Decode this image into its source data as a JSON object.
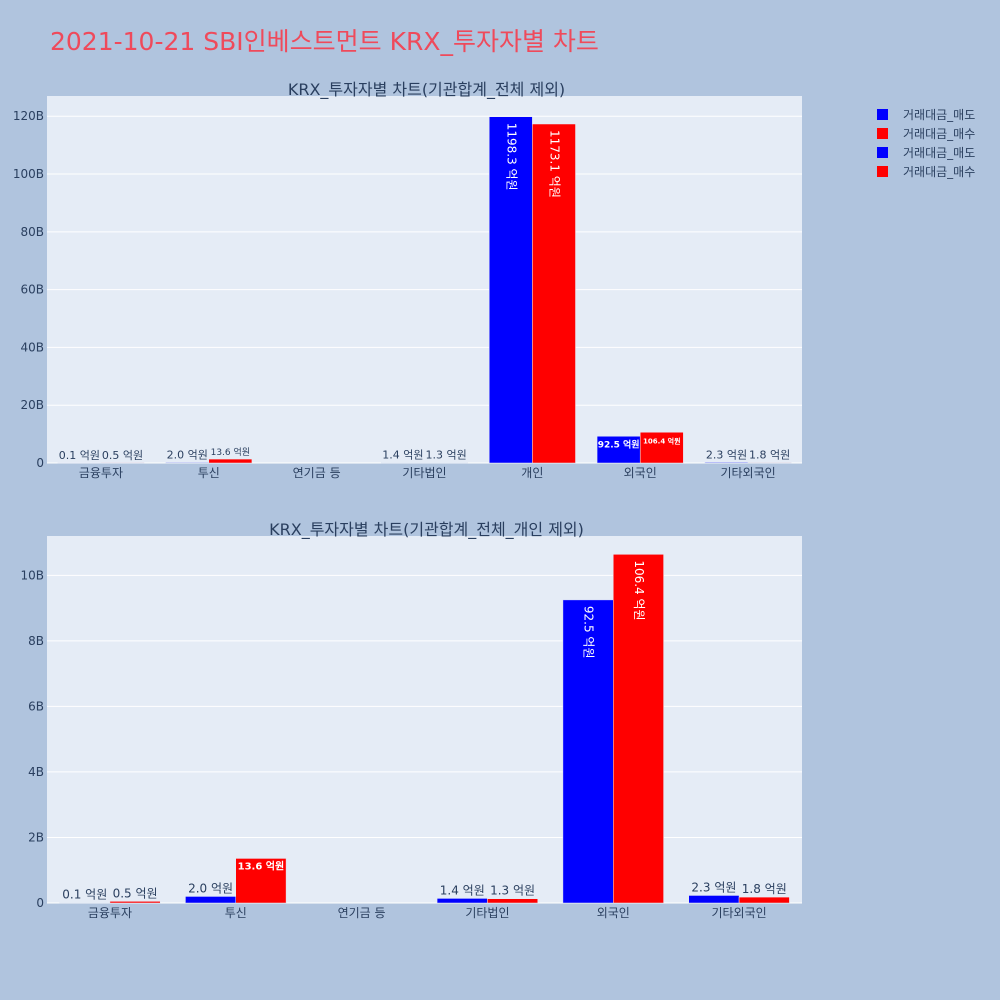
{
  "title": "2021-10-21 SBI인베스트먼트 KRX_투자자별 차트",
  "colors": {
    "sell": "#0000ff",
    "buy": "#ff0000"
  },
  "legend": [
    {
      "name": "거래대금_매도",
      "color": "#0000ff"
    },
    {
      "name": "거래대금_매수",
      "color": "#ff0000"
    },
    {
      "name": "거래대금_매도",
      "color": "#0000ff"
    },
    {
      "name": "거래대금_매수",
      "color": "#ff0000"
    }
  ],
  "chart_data": [
    {
      "type": "bar",
      "title": "KRX_투자자별 차트(기관합계_전체 제외)",
      "categories": [
        "금융투자",
        "투신",
        "연기금 등",
        "기타법인",
        "개인",
        "외국인",
        "기타외국인"
      ],
      "ylim": [
        0,
        127
      ],
      "y_ticks": [
        0,
        20,
        40,
        60,
        80,
        100,
        120
      ],
      "y_tick_labels": [
        "0",
        "20B",
        "40B",
        "60B",
        "80B",
        "100B",
        "120B"
      ],
      "series": [
        {
          "name": "거래대금_매도",
          "color": "#0000ff",
          "values": [
            0.01,
            0.2,
            0,
            0.14,
            119.83,
            9.25,
            0.23
          ],
          "labels": [
            "0.1 억원",
            "2.0 억원",
            "",
            "1.4 억원",
            "1198.3 억원",
            "92.5 억원",
            "2.3 억원"
          ]
        },
        {
          "name": "거래대금_매수",
          "color": "#ff0000",
          "values": [
            0.05,
            1.36,
            0,
            0.13,
            117.31,
            10.64,
            0.18
          ],
          "labels": [
            "0.5 억원",
            "13.6 억원",
            "",
            "1.3 억원",
            "1173.1 억원",
            "106.4 억원",
            "1.8 억원"
          ]
        }
      ]
    },
    {
      "type": "bar",
      "title": "KRX_투자자별 차트(기관합계_전체_개인 제외)",
      "categories": [
        "금융투자",
        "투신",
        "연기금 등",
        "기타법인",
        "외국인",
        "기타외국인"
      ],
      "ylim": [
        0,
        11.2
      ],
      "y_ticks": [
        0,
        2,
        4,
        6,
        8,
        10
      ],
      "y_tick_labels": [
        "0",
        "2B",
        "4B",
        "6B",
        "8B",
        "10B"
      ],
      "series": [
        {
          "name": "거래대금_매도",
          "color": "#0000ff",
          "values": [
            0.01,
            0.2,
            0,
            0.14,
            9.25,
            0.23
          ],
          "labels": [
            "0.1 억원",
            "2.0 억원",
            "",
            "1.4 억원",
            "92.5 억원",
            "2.3 억원"
          ]
        },
        {
          "name": "거래대금_매수",
          "color": "#ff0000",
          "values": [
            0.05,
            1.36,
            0,
            0.13,
            10.64,
            0.18
          ],
          "labels": [
            "0.5 억원",
            "13.6 억원",
            "",
            "1.3 억원",
            "106.4 억원",
            "1.8 억원"
          ]
        }
      ]
    }
  ]
}
